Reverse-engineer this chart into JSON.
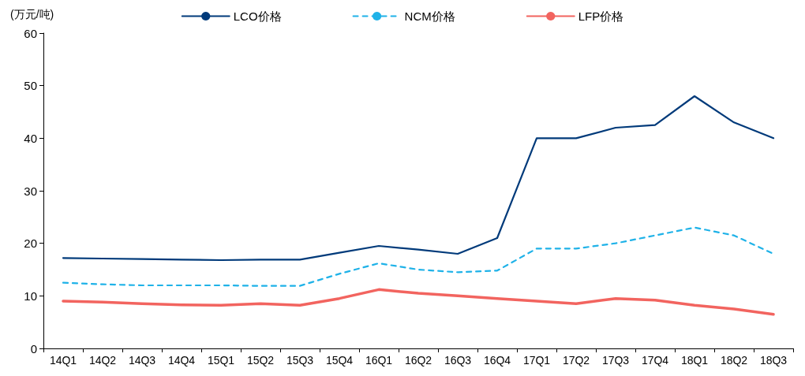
{
  "chart_data": {
    "type": "line",
    "ylabel": "(万元/吨)",
    "categories": [
      "14Q1",
      "14Q2",
      "14Q3",
      "14Q4",
      "15Q1",
      "15Q2",
      "15Q3",
      "15Q4",
      "16Q1",
      "16Q2",
      "16Q3",
      "16Q4",
      "17Q1",
      "17Q2",
      "17Q3",
      "17Q4",
      "18Q1",
      "18Q2",
      "18Q3"
    ],
    "series": [
      {
        "name": "LCO价格",
        "color": "#003a7a",
        "line_style": "solid",
        "values": [
          17.2,
          17.1,
          17.0,
          16.9,
          16.8,
          16.9,
          16.9,
          18.2,
          19.5,
          18.8,
          18.0,
          21.0,
          40,
          40,
          42,
          42.5,
          48,
          43,
          40
        ]
      },
      {
        "name": "NCM价格",
        "color": "#1fb2e8",
        "line_style": "dashed",
        "values": [
          12.5,
          12.2,
          12.0,
          12.0,
          12.0,
          11.9,
          11.9,
          14.2,
          16.2,
          15.0,
          14.5,
          14.8,
          19,
          19,
          20,
          21.5,
          23,
          21.5,
          18
        ]
      },
      {
        "name": "LFP价格",
        "color": "#f2645f",
        "line_style": "solid",
        "values": [
          9,
          8.8,
          8.5,
          8.3,
          8.2,
          8.5,
          8.2,
          9.5,
          11.2,
          10.5,
          10,
          9.5,
          9,
          8.5,
          9.5,
          9.2,
          8.2,
          7.5,
          6.5
        ]
      }
    ],
    "ylim": [
      0,
      60
    ],
    "yticks": [
      0,
      10,
      20,
      30,
      40,
      50,
      60
    ],
    "grid": false,
    "legend": "top",
    "marker": "none"
  }
}
